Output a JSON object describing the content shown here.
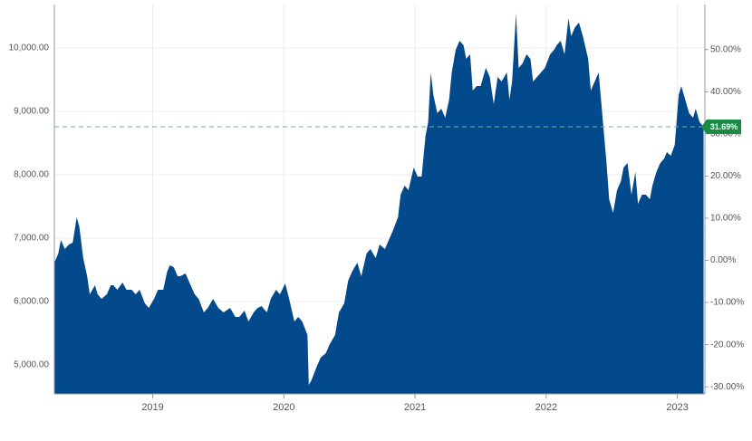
{
  "chart_data": {
    "type": "area",
    "color": "#034a8c",
    "grid": true,
    "x": [
      2018.25,
      2018.28,
      2018.3,
      2018.33,
      2018.36,
      2018.39,
      2018.42,
      2018.44,
      2018.47,
      2018.5,
      2018.52,
      2018.56,
      2018.58,
      2018.61,
      2018.65,
      2018.68,
      2018.7,
      2018.73,
      2018.77,
      2018.8,
      2018.84,
      2018.87,
      2018.9,
      2018.94,
      2018.97,
      2019.01,
      2019.04,
      2019.08,
      2019.11,
      2019.13,
      2019.16,
      2019.19,
      2019.21,
      2019.25,
      2019.28,
      2019.32,
      2019.35,
      2019.39,
      2019.42,
      2019.46,
      2019.5,
      2019.54,
      2019.59,
      2019.63,
      2019.66,
      2019.7,
      2019.73,
      2019.77,
      2019.8,
      2019.83,
      2019.87,
      2019.9,
      2019.94,
      2019.97,
      2020.01,
      2020.04,
      2020.08,
      2020.11,
      2020.14,
      2020.18,
      2020.19,
      2020.21,
      2020.25,
      2020.28,
      2020.32,
      2020.35,
      2020.39,
      2020.42,
      2020.46,
      2020.49,
      2020.52,
      2020.56,
      2020.59,
      2020.63,
      2020.66,
      2020.7,
      2020.73,
      2020.77,
      2020.8,
      2020.83,
      2020.87,
      2020.89,
      2020.92,
      2020.95,
      2020.99,
      2021.02,
      2021.05,
      2021.08,
      2021.1,
      2021.12,
      2021.14,
      2021.17,
      2021.2,
      2021.23,
      2021.26,
      2021.28,
      2021.31,
      2021.34,
      2021.37,
      2021.39,
      2021.42,
      2021.44,
      2021.47,
      2021.5,
      2021.54,
      2021.57,
      2021.6,
      2021.63,
      2021.66,
      2021.7,
      2021.72,
      2021.74,
      2021.77,
      2021.79,
      2021.82,
      2021.85,
      2021.88,
      2021.9,
      2021.93,
      2021.96,
      2021.99,
      2022.03,
      2022.06,
      2022.08,
      2022.11,
      2022.14,
      2022.17,
      2022.19,
      2022.22,
      2022.25,
      2022.28,
      2022.32,
      2022.34,
      2022.37,
      2022.4,
      2022.43,
      2022.46,
      2022.48,
      2022.51,
      2022.54,
      2022.57,
      2022.59,
      2022.62,
      2022.65,
      2022.68,
      2022.7,
      2022.73,
      2022.76,
      2022.79,
      2022.81,
      2022.84,
      2022.87,
      2022.9,
      2022.92,
      2022.95,
      2022.98,
      2023.01,
      2023.03,
      2023.06,
      2023.09,
      2023.12,
      2023.14,
      2023.17,
      2023.2
    ],
    "values": [
      6614,
      6757,
      6971,
      6829,
      6900,
      6929,
      7329,
      7186,
      6686,
      6400,
      6114,
      6257,
      6114,
      6043,
      6114,
      6257,
      6257,
      6186,
      6300,
      6186,
      6186,
      6114,
      6186,
      5971,
      5900,
      6043,
      6186,
      6186,
      6471,
      6571,
      6543,
      6400,
      6400,
      6443,
      6300,
      6114,
      6043,
      5829,
      5900,
      6043,
      5900,
      5829,
      5900,
      5757,
      5757,
      5857,
      5686,
      5829,
      5900,
      5929,
      5829,
      6043,
      6186,
      6114,
      6286,
      6043,
      5686,
      5757,
      5686,
      5471,
      4686,
      4757,
      4971,
      5114,
      5186,
      5329,
      5471,
      5829,
      5971,
      6329,
      6471,
      6614,
      6400,
      6757,
      6829,
      6686,
      6900,
      6829,
      6971,
      7114,
      7329,
      7686,
      7829,
      7757,
      8114,
      7971,
      7971,
      8614,
      8829,
      9614,
      9257,
      8971,
      9043,
      8900,
      9186,
      9614,
      9971,
      10114,
      10043,
      9829,
      9900,
      9329,
      9400,
      9400,
      9686,
      9543,
      9114,
      9543,
      9471,
      9614,
      9186,
      9471,
      10543,
      9686,
      9757,
      9900,
      9829,
      9471,
      9543,
      9614,
      9686,
      9900,
      9971,
      10043,
      10114,
      9900,
      10471,
      10186,
      10329,
      10400,
      10186,
      9829,
      9329,
      9471,
      9614,
      8900,
      8186,
      7614,
      7400,
      7757,
      7900,
      8114,
      8186,
      7686,
      8043,
      7543,
      7686,
      7686,
      7614,
      7829,
      8043,
      8186,
      8257,
      8357,
      8300,
      8471,
      9257,
      9400,
      9186,
      8971,
      8900,
      9043,
      8829,
      8757
    ],
    "xlim": [
      2018.25,
      2023.21
    ],
    "xticks": [
      2019,
      2020,
      2021,
      2022,
      2023
    ],
    "ylim": [
      4543,
      10686
    ],
    "yticks": [
      {
        "value": 5000,
        "label": "5,000.00"
      },
      {
        "value": 6000,
        "label": "6,000.00"
      },
      {
        "value": 7000,
        "label": "7,000.00"
      },
      {
        "value": 8000,
        "label": "8,000.00"
      },
      {
        "value": 9000,
        "label": "9,000.00"
      },
      {
        "value": 10000,
        "label": "10,000.00"
      }
    ],
    "y2lim": [
      -31.68,
      60.69
    ],
    "y2ticks": [
      {
        "value": 50,
        "label": "50.00%"
      },
      {
        "value": 40,
        "label": "40.00%"
      },
      {
        "value": 30,
        "label": "30.00%"
      },
      {
        "value": 20,
        "label": "20.00%"
      },
      {
        "value": 10,
        "label": "10.00%"
      },
      {
        "value": 0,
        "label": "0.00%"
      },
      {
        "value": -10,
        "label": "-10.00%"
      },
      {
        "value": -20,
        "label": "-20.00%"
      },
      {
        "value": -30,
        "label": "-30.00%"
      }
    ],
    "reference": {
      "value": 31.69,
      "label": "31.69%",
      "axis": "y2",
      "color": "#1a8a45"
    }
  }
}
